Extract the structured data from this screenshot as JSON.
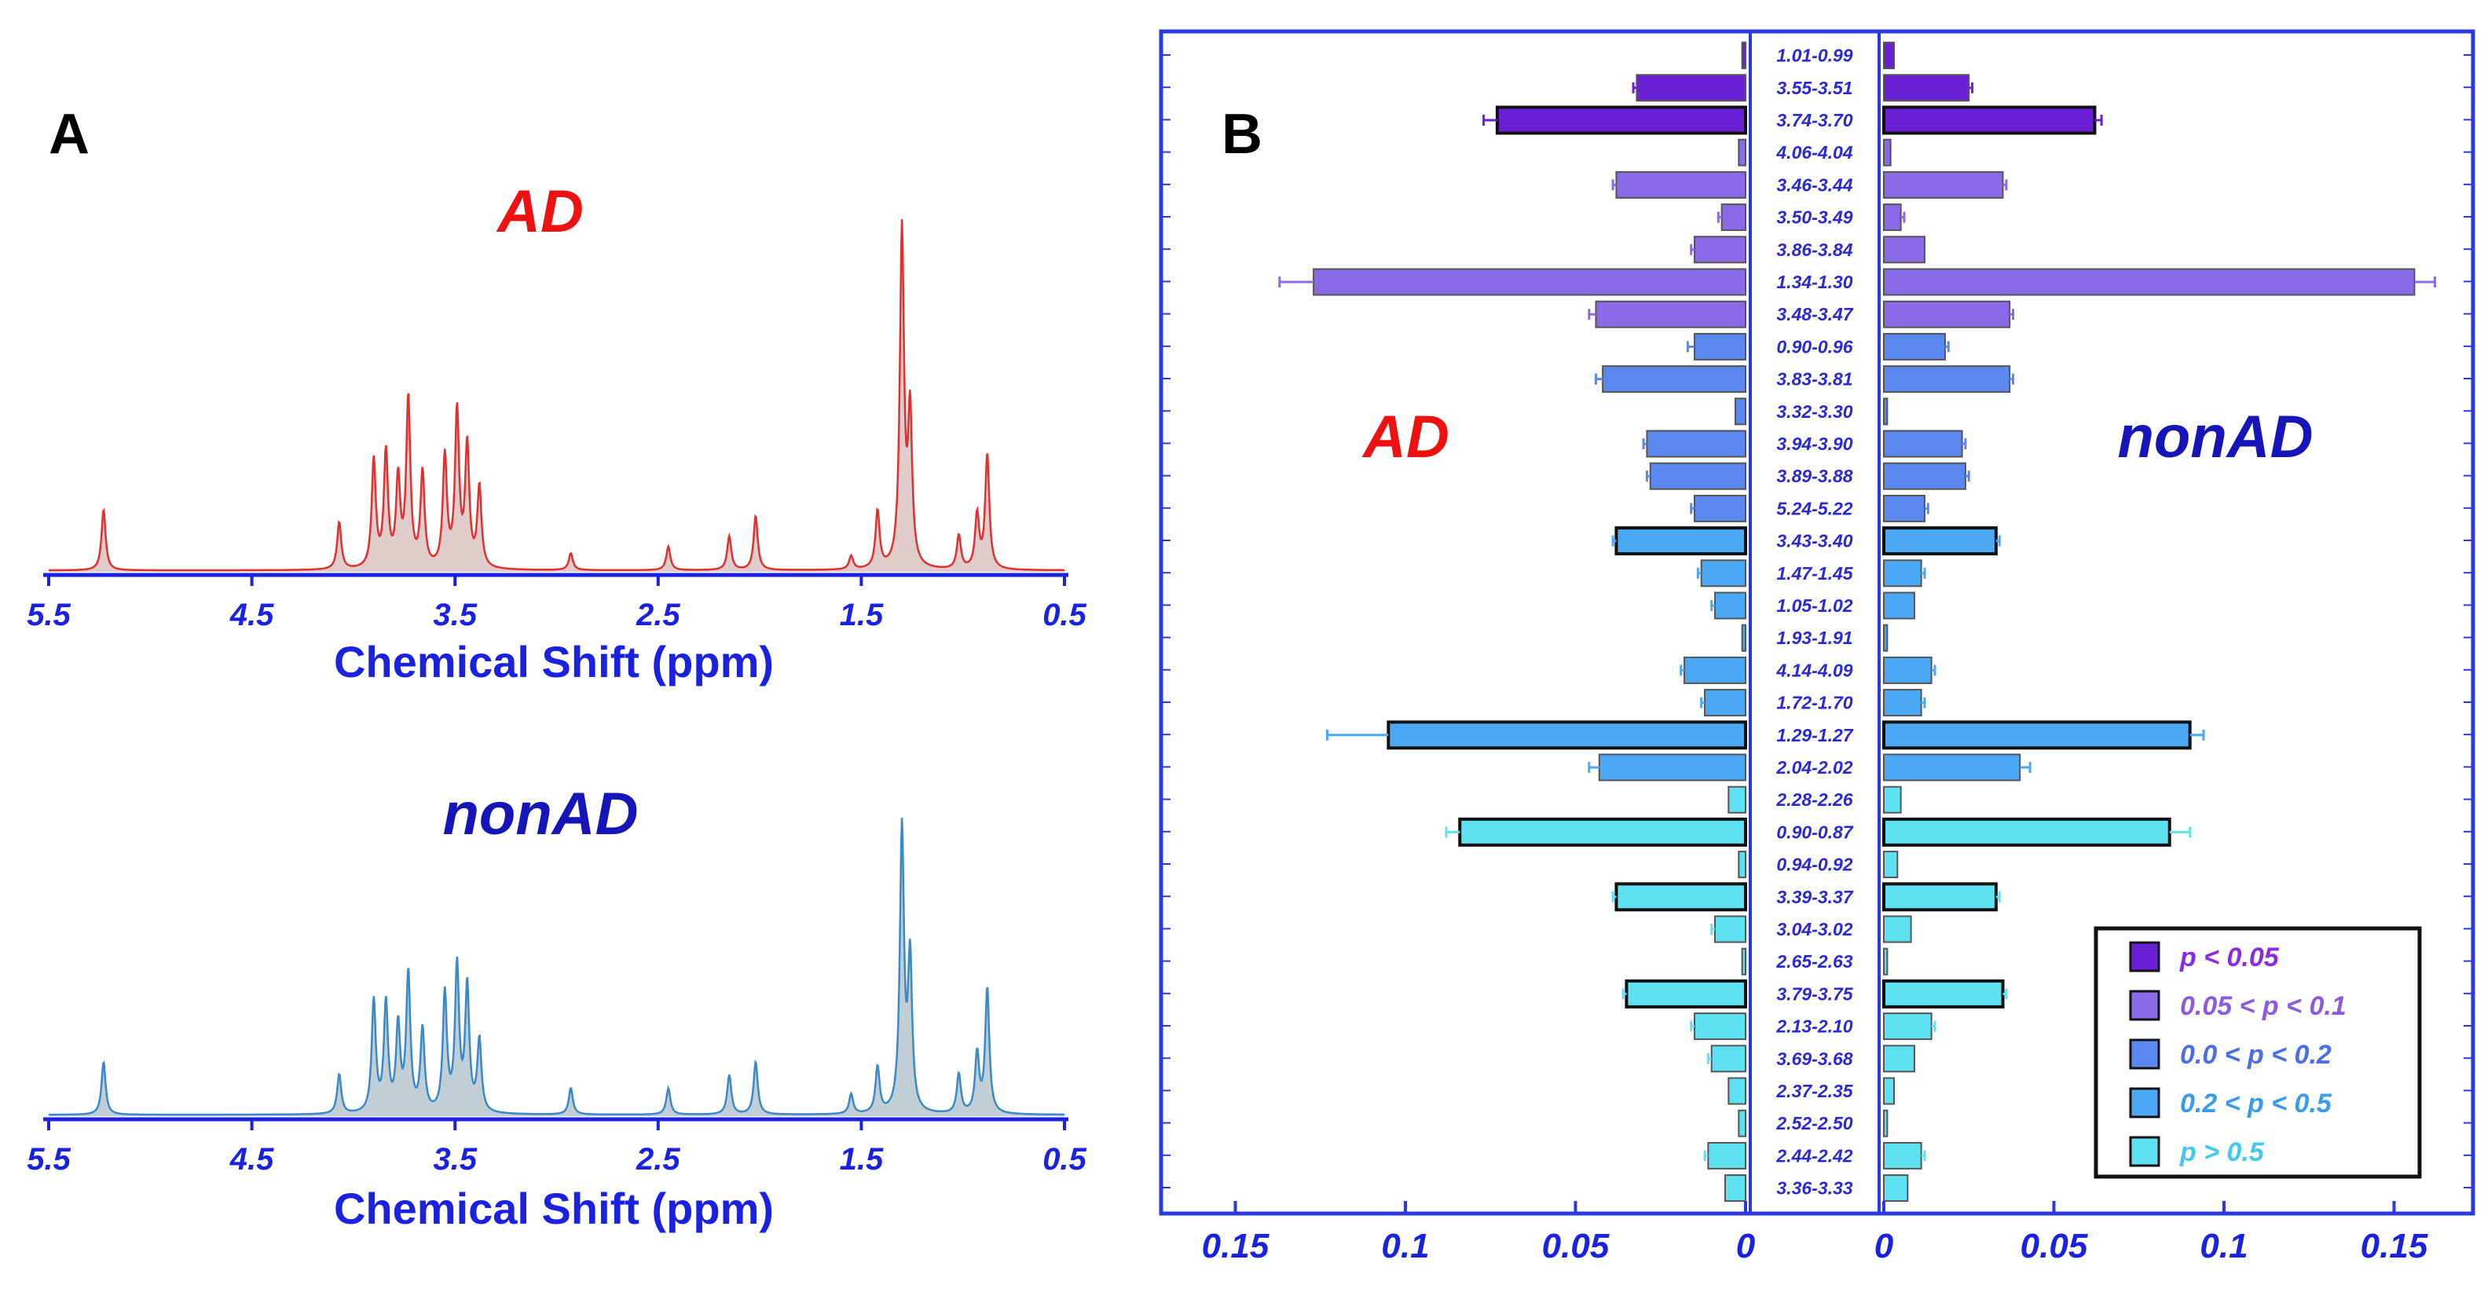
{
  "panel_a": {
    "letter": "A",
    "top_label": "AD",
    "bottom_label": "nonAD",
    "xlabel": "Chemical Shift (ppm)",
    "x_ticks": [
      "5.5",
      "4.5",
      "3.5",
      "2.5",
      "1.5",
      "0.5"
    ],
    "colors": {
      "ad": "#e03030",
      "nonad": "#3a8ac8",
      "label_ad": "#ee1111",
      "label_nonad": "#1616b8",
      "axis": "#1a22e0"
    }
  },
  "panel_b": {
    "letter": "B",
    "left_label": "AD",
    "right_label": "nonAD",
    "left_ticks": [
      "0.15",
      "0.1",
      "0.05",
      "0"
    ],
    "right_ticks": [
      "0",
      "0.05",
      "0.1",
      "0.15"
    ]
  },
  "legend": [
    {
      "label": "p < 0.05",
      "color": "#6a1fd4",
      "text_color": "#8a2be2"
    },
    {
      "label": "0.05 < p < 0.1",
      "color": "#8a6ae6",
      "text_color": "#8a5ae0"
    },
    {
      "label": "0.0 < p < 0.2",
      "color": "#5a88ef",
      "text_color": "#4a6ee8"
    },
    {
      "label": "0.2 < p < 0.5",
      "color": "#4aa8f4",
      "text_color": "#3a9aee"
    },
    {
      "label": "p > 0.5",
      "color": "#5ee2f2",
      "text_color": "#42c8ee"
    }
  ],
  "chart_data": [
    {
      "type": "line",
      "title": "AD",
      "xlabel": "Chemical Shift (ppm)",
      "xlim": [
        5.5,
        0.5
      ],
      "x_ticks": [
        5.5,
        4.5,
        3.5,
        2.5,
        1.5,
        0.5
      ],
      "peaks": [
        {
          "ppm": 5.23,
          "h": 0.18
        },
        {
          "ppm": 4.07,
          "h": 0.14
        },
        {
          "ppm": 3.9,
          "h": 0.32
        },
        {
          "ppm": 3.84,
          "h": 0.34
        },
        {
          "ppm": 3.78,
          "h": 0.26
        },
        {
          "ppm": 3.73,
          "h": 0.5
        },
        {
          "ppm": 3.66,
          "h": 0.28
        },
        {
          "ppm": 3.55,
          "h": 0.33
        },
        {
          "ppm": 3.49,
          "h": 0.46
        },
        {
          "ppm": 3.44,
          "h": 0.36
        },
        {
          "ppm": 3.38,
          "h": 0.24
        },
        {
          "ppm": 2.93,
          "h": 0.05
        },
        {
          "ppm": 2.45,
          "h": 0.07
        },
        {
          "ppm": 2.15,
          "h": 0.1
        },
        {
          "ppm": 2.02,
          "h": 0.16
        },
        {
          "ppm": 1.55,
          "h": 0.04
        },
        {
          "ppm": 1.42,
          "h": 0.17
        },
        {
          "ppm": 1.3,
          "h": 1.0
        },
        {
          "ppm": 1.26,
          "h": 0.45
        },
        {
          "ppm": 1.02,
          "h": 0.1
        },
        {
          "ppm": 0.93,
          "h": 0.16
        },
        {
          "ppm": 0.88,
          "h": 0.34
        }
      ]
    },
    {
      "type": "line",
      "title": "nonAD",
      "xlabel": "Chemical Shift (ppm)",
      "xlim": [
        5.5,
        0.5
      ],
      "x_ticks": [
        5.5,
        4.5,
        3.5,
        2.5,
        1.5,
        0.5
      ],
      "peaks": [
        {
          "ppm": 5.23,
          "h": 0.16
        },
        {
          "ppm": 4.07,
          "h": 0.12
        },
        {
          "ppm": 3.9,
          "h": 0.34
        },
        {
          "ppm": 3.84,
          "h": 0.33
        },
        {
          "ppm": 3.78,
          "h": 0.26
        },
        {
          "ppm": 3.73,
          "h": 0.42
        },
        {
          "ppm": 3.66,
          "h": 0.25
        },
        {
          "ppm": 3.55,
          "h": 0.36
        },
        {
          "ppm": 3.49,
          "h": 0.44
        },
        {
          "ppm": 3.44,
          "h": 0.38
        },
        {
          "ppm": 3.38,
          "h": 0.22
        },
        {
          "ppm": 2.93,
          "h": 0.08
        },
        {
          "ppm": 2.45,
          "h": 0.08
        },
        {
          "ppm": 2.15,
          "h": 0.12
        },
        {
          "ppm": 2.02,
          "h": 0.16
        },
        {
          "ppm": 1.55,
          "h": 0.06
        },
        {
          "ppm": 1.42,
          "h": 0.14
        },
        {
          "ppm": 1.3,
          "h": 0.86
        },
        {
          "ppm": 1.26,
          "h": 0.46
        },
        {
          "ppm": 1.02,
          "h": 0.12
        },
        {
          "ppm": 0.93,
          "h": 0.18
        },
        {
          "ppm": 0.88,
          "h": 0.38
        }
      ]
    },
    {
      "type": "bar",
      "orientation": "horizontal-mirrored",
      "left_series": "AD",
      "right_series": "nonAD",
      "xlim": [
        0,
        0.18
      ],
      "x_ticks": [
        0,
        0.05,
        0.1,
        0.15
      ],
      "categories": [
        "1.01-0.99",
        "3.55-3.51",
        "3.74-3.70",
        "4.06-4.04",
        "3.46-3.44",
        "3.50-3.49",
        "3.86-3.84",
        "1.34-1.30",
        "3.48-3.47",
        "0.90-0.96",
        "3.83-3.81",
        "3.32-3.30",
        "3.94-3.90",
        "3.89-3.88",
        "5.24-5.22",
        "3.43-3.40",
        "1.47-1.45",
        "1.05-1.02",
        "1.93-1.91",
        "4.14-4.09",
        "1.72-1.70",
        "1.29-1.27",
        "2.04-2.02",
        "2.28-2.26",
        "0.90-0.87",
        "0.94-0.92",
        "3.39-3.37",
        "3.04-3.02",
        "2.65-2.63",
        "3.79-3.75",
        "2.13-2.10",
        "3.69-3.68",
        "2.37-2.35",
        "2.52-2.50",
        "2.44-2.42",
        "3.36-3.33"
      ],
      "ad_values": [
        0.001,
        0.032,
        0.073,
        0.002,
        0.038,
        0.007,
        0.015,
        0.127,
        0.044,
        0.015,
        0.042,
        0.003,
        0.029,
        0.028,
        0.015,
        0.038,
        0.013,
        0.009,
        0.001,
        0.018,
        0.012,
        0.105,
        0.043,
        0.005,
        0.084,
        0.002,
        0.038,
        0.009,
        0.001,
        0.035,
        0.015,
        0.01,
        0.005,
        0.002,
        0.011,
        0.006
      ],
      "ad_errors": [
        0,
        0.001,
        0.004,
        0,
        0.001,
        0.001,
        0.001,
        0.01,
        0.002,
        0.002,
        0.002,
        0,
        0.001,
        0.001,
        0.001,
        0.001,
        0.001,
        0.001,
        0,
        0.001,
        0.001,
        0.018,
        0.003,
        0,
        0.004,
        0,
        0.001,
        0.001,
        0,
        0.001,
        0.001,
        0.001,
        0,
        0,
        0.001,
        0
      ],
      "nonad_values": [
        0.003,
        0.025,
        0.062,
        0.002,
        0.035,
        0.005,
        0.012,
        0.156,
        0.037,
        0.018,
        0.037,
        0.001,
        0.023,
        0.024,
        0.012,
        0.033,
        0.011,
        0.009,
        0.001,
        0.014,
        0.011,
        0.09,
        0.04,
        0.005,
        0.084,
        0.004,
        0.033,
        0.008,
        0.001,
        0.035,
        0.014,
        0.009,
        0.003,
        0.001,
        0.011,
        0.007
      ],
      "nonad_errors": [
        0,
        0.001,
        0.002,
        0,
        0.001,
        0.001,
        0,
        0.006,
        0.001,
        0.001,
        0.001,
        0,
        0.001,
        0.001,
        0.001,
        0.001,
        0.001,
        0,
        0,
        0.001,
        0.001,
        0.004,
        0.003,
        0,
        0.006,
        0,
        0.001,
        0,
        0,
        0.001,
        0.001,
        0,
        0,
        0,
        0.001,
        0
      ],
      "significance": [
        0,
        0,
        0,
        1,
        1,
        1,
        1,
        1,
        1,
        2,
        2,
        2,
        2,
        2,
        2,
        3,
        3,
        3,
        3,
        3,
        3,
        3,
        3,
        4,
        4,
        4,
        4,
        4,
        4,
        4,
        4,
        4,
        4,
        4,
        4,
        4
      ],
      "significance_legend": [
        "p < 0.05",
        "0.05 < p < 0.1",
        "0.0 < p < 0.2",
        "0.2 < p < 0.5",
        "p > 0.5"
      ],
      "bordered_rows": [
        "3.74-3.70",
        "3.43-3.40",
        "1.29-1.27",
        "0.90-0.87",
        "3.39-3.37",
        "3.79-3.75"
      ]
    }
  ]
}
